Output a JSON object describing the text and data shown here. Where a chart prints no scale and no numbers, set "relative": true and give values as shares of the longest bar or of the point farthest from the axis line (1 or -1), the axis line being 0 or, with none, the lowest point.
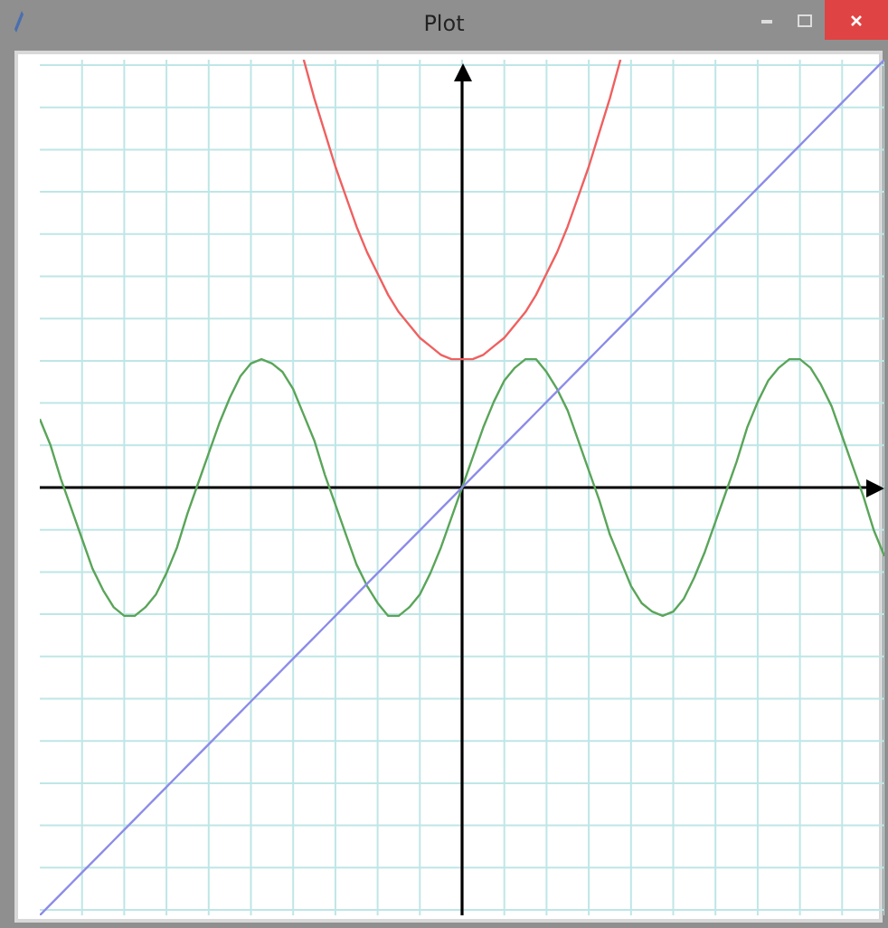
{
  "chart_data": {
    "type": "line",
    "title": "Plot",
    "relative": true,
    "grid": true,
    "legend": false,
    "marker": "none",
    "categories": [
      null,
      null,
      null,
      null,
      null,
      null,
      null,
      null,
      null,
      null,
      null,
      null,
      null,
      null,
      null,
      null,
      null,
      null,
      null,
      null,
      null,
      null,
      null,
      null,
      null,
      null,
      null,
      null,
      null,
      null,
      null,
      null,
      null,
      null,
      null,
      null,
      null,
      null,
      null,
      null,
      null,
      null,
      null,
      null,
      null,
      null,
      null,
      null,
      null,
      null,
      null,
      null,
      null,
      null,
      null,
      null,
      null,
      null,
      null,
      null,
      null,
      null,
      null,
      null,
      null,
      null,
      null,
      null,
      null,
      null,
      null,
      null,
      null,
      null,
      null,
      null,
      null,
      null,
      null,
      null,
      null
    ],
    "series": [
      {
        "color": "#f06060",
        "values": [
          null,
          null,
          null,
          null,
          null,
          null,
          null,
          null,
          null,
          null,
          null,
          null,
          null,
          null,
          null,
          null,
          null,
          null,
          null,
          null,
          null,
          null,
          null,
          null,
          null,
          1,
          0.91,
          0.83,
          0.75,
          0.68,
          0.61,
          0.55,
          0.5,
          0.45,
          0.41,
          0.38,
          0.35,
          0.33,
          0.31,
          0.3,
          0.3,
          0.3,
          0.31,
          0.33,
          0.35,
          0.38,
          0.41,
          0.45,
          0.5,
          0.55,
          0.61,
          0.68,
          0.75,
          0.83,
          0.91,
          1,
          null,
          null,
          null,
          null,
          null,
          null,
          null,
          null,
          null,
          null,
          null,
          null,
          null,
          null,
          null,
          null,
          null,
          null,
          null,
          null,
          null,
          null,
          null,
          null,
          null
        ]
      },
      {
        "color": "#8c8ce8",
        "values": [
          -1,
          -0.975,
          -0.95,
          -0.925,
          -0.9,
          -0.875,
          -0.85,
          -0.825,
          -0.8,
          -0.775,
          -0.75,
          -0.725,
          -0.7,
          -0.675,
          -0.65,
          -0.625,
          -0.6,
          -0.575,
          -0.55,
          -0.525,
          -0.5,
          -0.475,
          -0.45,
          -0.425,
          -0.4,
          -0.375,
          -0.35,
          -0.325,
          -0.3,
          -0.275,
          -0.25,
          -0.225,
          -0.2,
          -0.175,
          -0.15,
          -0.125,
          -0.1,
          -0.075,
          -0.05,
          -0.025,
          0,
          0.025,
          0.05,
          0.075,
          0.1,
          0.125,
          0.15,
          0.175,
          0.2,
          0.225,
          0.25,
          0.275,
          0.3,
          0.325,
          0.35,
          0.375,
          0.4,
          0.425,
          0.45,
          0.475,
          0.5,
          0.525,
          0.55,
          0.575,
          0.6,
          0.625,
          0.65,
          0.675,
          0.7,
          0.725,
          0.75,
          0.775,
          0.8,
          0.825,
          0.85,
          0.875,
          0.9,
          0.925,
          0.95,
          0.975,
          1
        ]
      },
      {
        "color": "#5aa55a",
        "values": [
          0.16,
          0.1,
          0.02,
          -0.05,
          -0.12,
          -0.19,
          -0.24,
          -0.28,
          -0.3,
          -0.3,
          -0.28,
          -0.25,
          -0.2,
          -0.14,
          -0.06,
          0.01,
          0.08,
          0.15,
          0.21,
          0.26,
          0.29,
          0.3,
          0.29,
          0.27,
          0.23,
          0.17,
          0.11,
          0.03,
          -0.04,
          -0.11,
          -0.18,
          -0.23,
          -0.27,
          -0.3,
          -0.3,
          -0.28,
          -0.25,
          -0.2,
          -0.14,
          -0.07,
          0,
          0.07,
          0.14,
          0.2,
          0.25,
          0.28,
          0.3,
          0.3,
          0.27,
          0.23,
          0.18,
          0.11,
          0.04,
          -0.03,
          -0.11,
          -0.17,
          -0.23,
          -0.27,
          -0.29,
          -0.3,
          -0.29,
          -0.26,
          -0.21,
          -0.15,
          -0.08,
          -0.01,
          0.06,
          0.14,
          0.2,
          0.25,
          0.28,
          0.3,
          0.3,
          0.28,
          0.24,
          0.19,
          0.12,
          0.05,
          -0.02,
          -0.1,
          -0.16
        ]
      }
    ]
  }
}
